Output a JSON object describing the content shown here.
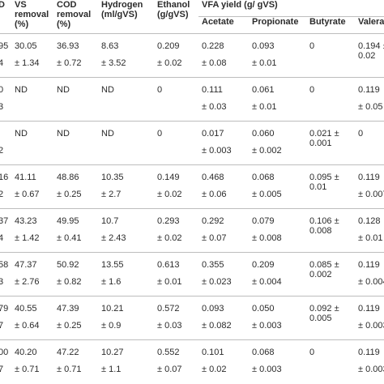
{
  "header": {
    "col0": "D",
    "vs_removal": "VS removal (%)",
    "cod_removal": "COD removal (%)",
    "hydrogen": "Hydrogen (ml/gVS)",
    "ethanol": "Ethanol (g/gVS)",
    "vfa_yield": "VFA yield (g/ gVS)",
    "acetate": "Acetate",
    "propionate": "Propionate",
    "butyrate": "Butyrate",
    "valerate": "Valerate"
  },
  "rows": [
    {
      "id": [
        "95",
        "4"
      ],
      "vs": [
        "30.05",
        "± 1.34"
      ],
      "cod": [
        "36.93",
        "± 0.72"
      ],
      "h2": [
        "8.63",
        "± 3.52"
      ],
      "eth": [
        "0.209",
        "± 0.02"
      ],
      "ace": [
        "0.228",
        "± 0.08"
      ],
      "pro": [
        "0.093",
        "± 0.01"
      ],
      "but": [
        "0",
        ""
      ],
      "val": [
        "0.194 ± 0.02",
        ""
      ]
    },
    {
      "id": [
        "0",
        "3"
      ],
      "vs": [
        "ND",
        ""
      ],
      "cod": [
        "ND",
        ""
      ],
      "h2": [
        "ND",
        ""
      ],
      "eth": [
        "0",
        ""
      ],
      "ace": [
        "0.111",
        "± 0.03"
      ],
      "pro": [
        "0.061",
        "± 0.01"
      ],
      "but": [
        "0",
        ""
      ],
      "val": [
        "0.119",
        "± 0.05"
      ]
    },
    {
      "id": [
        "",
        "2"
      ],
      "vs": [
        "ND",
        ""
      ],
      "cod": [
        "ND",
        ""
      ],
      "h2": [
        "ND",
        ""
      ],
      "eth": [
        "0",
        ""
      ],
      "ace": [
        "0.017",
        "± 0.003"
      ],
      "pro": [
        "0.060",
        "± 0.002"
      ],
      "but": [
        "0.021 ± 0.001",
        ""
      ],
      "val": [
        "0",
        ""
      ]
    },
    {
      "id": [
        "16",
        "2"
      ],
      "vs": [
        "41.11",
        "± 0.67"
      ],
      "cod": [
        "48.86",
        "± 0.25"
      ],
      "h2": [
        "10.35",
        "± 2.7"
      ],
      "eth": [
        "0.149",
        "± 0.02"
      ],
      "ace": [
        "0.468",
        "± 0.06"
      ],
      "pro": [
        "0.068",
        "± 0.005"
      ],
      "but": [
        "0.095 ± 0.01",
        ""
      ],
      "val": [
        "0.119",
        "± 0.007"
      ]
    },
    {
      "id": [
        "37",
        "4"
      ],
      "vs": [
        "43.23",
        "± 1.42"
      ],
      "cod": [
        "49.95",
        "± 0.41"
      ],
      "h2": [
        "10.7",
        "± 2.43"
      ],
      "eth": [
        "0.293",
        "± 0.02"
      ],
      "ace": [
        "0.292",
        "± 0.07"
      ],
      "pro": [
        "0.079",
        "± 0.008"
      ],
      "but": [
        "0.106 ± 0.008",
        ""
      ],
      "val": [
        "0.128",
        "± 0.01"
      ]
    },
    {
      "id": [
        "58",
        "3"
      ],
      "vs": [
        "47.37",
        "± 2.76"
      ],
      "cod": [
        "50.92",
        "± 0.82"
      ],
      "h2": [
        "13.55",
        "± 1.6"
      ],
      "eth": [
        "0.613",
        "± 0.01"
      ],
      "ace": [
        "0.355",
        "± 0.023"
      ],
      "pro": [
        "0.209",
        "± 0.004"
      ],
      "but": [
        "0.085 ± 0.002",
        ""
      ],
      "val": [
        "0.119",
        "± 0.004"
      ]
    },
    {
      "id": [
        "79",
        "7"
      ],
      "vs": [
        "40.55",
        "± 0.64"
      ],
      "cod": [
        "47.39",
        "± 0.25"
      ],
      "h2": [
        "10.21",
        "± 0.9"
      ],
      "eth": [
        "0.572",
        "± 0.03"
      ],
      "ace": [
        "0.093",
        "± 0.082"
      ],
      "pro": [
        "0.050",
        "± 0.003"
      ],
      "but": [
        "0.092 ± 0.005",
        ""
      ],
      "val": [
        "0.119",
        "± 0.003"
      ]
    },
    {
      "id": [
        "00",
        "7"
      ],
      "vs": [
        "40.20",
        "± 0.71"
      ],
      "cod": [
        "47.22",
        "± 0.71"
      ],
      "h2": [
        "10.27",
        "± 1.1"
      ],
      "eth": [
        "0.552",
        "± 0.07"
      ],
      "ace": [
        "0.101",
        "± 0.02"
      ],
      "pro": [
        "0.068",
        "± 0.003"
      ],
      "but": [
        "0",
        ""
      ],
      "val": [
        "0.119",
        "± 0.003"
      ]
    }
  ]
}
